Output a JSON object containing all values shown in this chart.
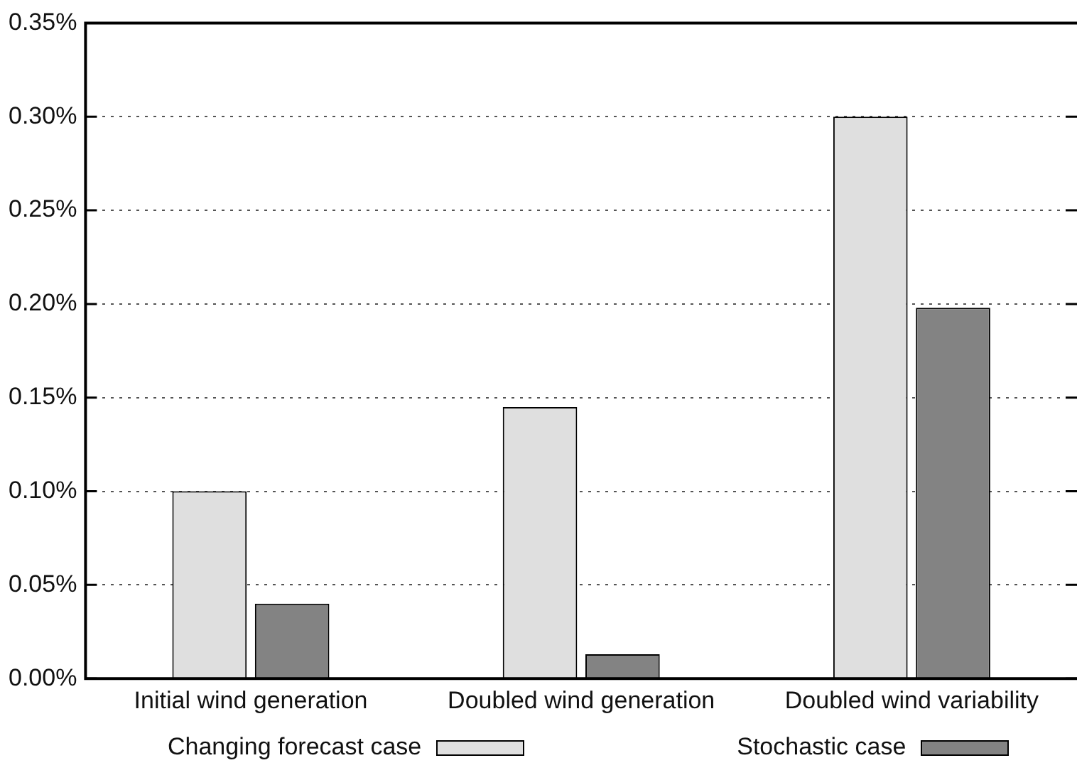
{
  "chart_data": {
    "type": "bar",
    "categories": [
      "Initial wind generation",
      "Doubled wind generation",
      "Doubled wind variability"
    ],
    "series": [
      {
        "name": "Changing forecast case",
        "color": "#dfdfdf",
        "values": [
          0.1,
          0.145,
          0.3
        ]
      },
      {
        "name": "Stochastic case",
        "color": "#838383",
        "values": [
          0.04,
          0.013,
          0.198
        ]
      }
    ],
    "ylim": [
      0,
      0.35
    ],
    "yticks": [
      {
        "value": 0,
        "label": "0.00%"
      },
      {
        "value": 0.05,
        "label": "0.05%"
      },
      {
        "value": 0.1,
        "label": "0.10%"
      },
      {
        "value": 0.15,
        "label": "0.15%"
      },
      {
        "value": 0.2,
        "label": "0.20%"
      },
      {
        "value": 0.25,
        "label": "0.25%"
      },
      {
        "value": 0.3,
        "label": "0.30%"
      },
      {
        "value": 0.35,
        "label": "0.35%"
      }
    ],
    "grid": "y",
    "legend": "bottom"
  }
}
